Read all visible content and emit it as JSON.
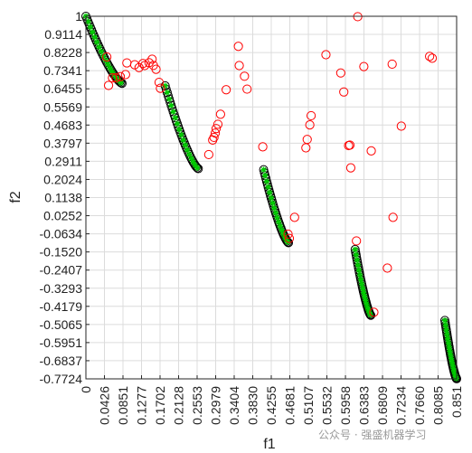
{
  "chart_data": {
    "type": "scatter",
    "title": "",
    "xlabel": "f1",
    "ylabel": "f2",
    "xlim": [
      0,
      0.851
    ],
    "ylim": [
      -0.7724,
      1
    ],
    "grid": true,
    "xticks": [
      0,
      0.0426,
      0.0851,
      0.1277,
      0.1702,
      0.2128,
      0.2553,
      0.2979,
      0.3404,
      0.383,
      0.4255,
      0.4681,
      0.5107,
      0.5532,
      0.5958,
      0.6383,
      0.6809,
      0.7234,
      0.766,
      0.8085,
      0.851
    ],
    "xtick_labels": [
      "0",
      "0.0426",
      "0.0851",
      "0.1277",
      "0.1702",
      "0.2128",
      "0.2553",
      "0.2979",
      "0.3404",
      "0.3830",
      "0.4255",
      "0.4681",
      "0.5107",
      "0.5532",
      "0.5958",
      "0.6383",
      "0.6809",
      "0.7234",
      "0.7660",
      "0.8085",
      "0.851"
    ],
    "yticks": [
      1,
      0.9114,
      0.8228,
      0.7341,
      0.6455,
      0.5569,
      0.4683,
      0.3797,
      0.2911,
      0.2024,
      0.1138,
      0.0252,
      -0.0634,
      -0.152,
      -0.2407,
      -0.3293,
      -0.4179,
      -0.5065,
      -0.5951,
      -0.6837,
      -0.7724
    ],
    "ytick_labels": [
      "1",
      "0.9114",
      "0.8228",
      "0.7341",
      "0.6455",
      "0.5569",
      "0.4683",
      "0.3797",
      "0.2911",
      "0.2024",
      "0.1138",
      "0.0252",
      "-0.0634",
      "-0.1520",
      "-0.2407",
      "-0.3293",
      "-0.4179",
      "-0.5065",
      "-0.5951",
      "-0.6837",
      "-0.7724"
    ],
    "fronts": [
      {
        "x_start": 0.0,
        "x_end": 0.083,
        "y_start": 1.0,
        "y_end": 0.672
      },
      {
        "x_start": 0.182,
        "x_end": 0.258,
        "y_start": 0.66,
        "y_end": 0.255
      },
      {
        "x_start": 0.408,
        "x_end": 0.465,
        "y_start": 0.25,
        "y_end": -0.107
      },
      {
        "x_start": 0.618,
        "x_end": 0.654,
        "y_start": -0.14,
        "y_end": -0.462
      },
      {
        "x_start": 0.824,
        "x_end": 0.851,
        "y_start": -0.487,
        "y_end": -0.772
      }
    ],
    "series": [
      {
        "name": "",
        "marker": "open-circle",
        "color": "#ff0000",
        "points": [
          [
            0.048,
            0.801
          ],
          [
            0.052,
            0.662
          ],
          [
            0.061,
            0.699
          ],
          [
            0.069,
            0.699
          ],
          [
            0.079,
            0.705
          ],
          [
            0.091,
            0.715
          ],
          [
            0.094,
            0.772
          ],
          [
            0.112,
            0.763
          ],
          [
            0.122,
            0.749
          ],
          [
            0.131,
            0.769
          ],
          [
            0.135,
            0.759
          ],
          [
            0.145,
            0.773
          ],
          [
            0.152,
            0.79
          ],
          [
            0.155,
            0.76
          ],
          [
            0.161,
            0.741
          ],
          [
            0.168,
            0.677
          ],
          [
            0.171,
            0.648
          ],
          [
            0.282,
            0.324
          ],
          [
            0.291,
            0.395
          ],
          [
            0.294,
            0.408
          ],
          [
            0.297,
            0.429
          ],
          [
            0.299,
            0.451
          ],
          [
            0.303,
            0.472
          ],
          [
            0.309,
            0.521
          ],
          [
            0.322,
            0.641
          ],
          [
            0.35,
            0.853
          ],
          [
            0.352,
            0.759
          ],
          [
            0.364,
            0.707
          ],
          [
            0.37,
            0.644
          ],
          [
            0.406,
            0.362
          ],
          [
            0.464,
            -0.065
          ],
          [
            0.467,
            -0.086
          ],
          [
            0.479,
            0.017
          ],
          [
            0.505,
            0.357
          ],
          [
            0.508,
            0.398
          ],
          [
            0.514,
            0.469
          ],
          [
            0.517,
            0.514
          ],
          [
            0.551,
            0.812
          ],
          [
            0.585,
            0.723
          ],
          [
            0.592,
            0.63
          ],
          [
            0.603,
            0.368
          ],
          [
            0.606,
            0.37
          ],
          [
            0.608,
            0.259
          ],
          [
            0.624,
            0.998
          ],
          [
            0.621,
            -0.098
          ],
          [
            0.638,
            0.754
          ],
          [
            0.655,
            0.342
          ],
          [
            0.661,
            -0.447
          ],
          [
            0.692,
            -0.231
          ],
          [
            0.703,
            0.766
          ],
          [
            0.705,
            0.017
          ],
          [
            0.724,
            0.463
          ],
          [
            0.789,
            0.804
          ],
          [
            0.795,
            0.795
          ]
        ]
      }
    ]
  },
  "watermark": "公众号 · 强盛机器学习"
}
